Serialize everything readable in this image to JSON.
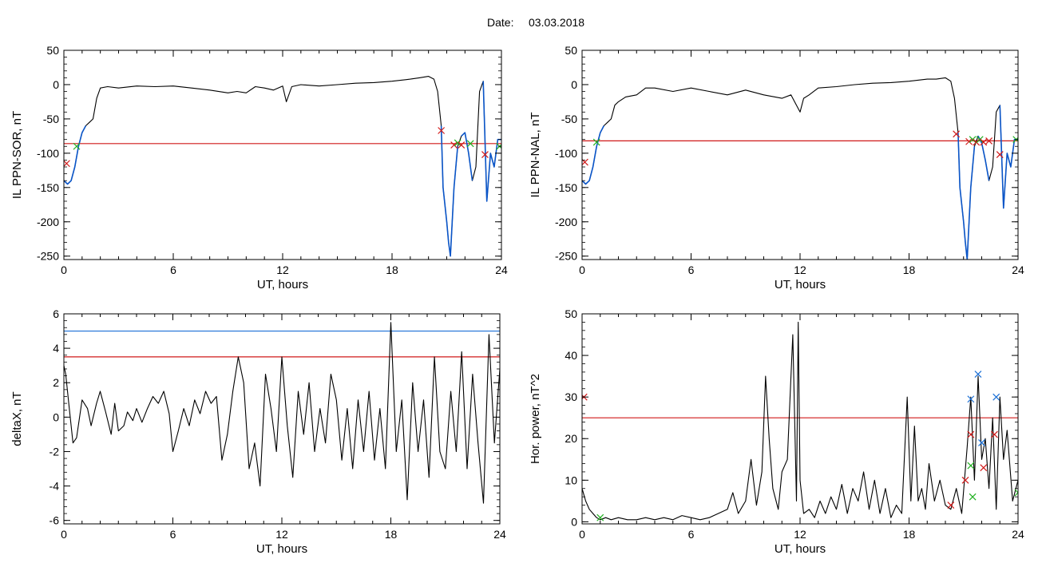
{
  "page": {
    "title_label": "Date:",
    "title_date": "03.03.2018"
  },
  "colors": {
    "trace": "#000000",
    "threshold_red": "#d01818",
    "threshold_blue": "#1a6fd6",
    "highlight_blue": "#0a55c8",
    "marker_red": "#d01818",
    "marker_green": "#22b022",
    "marker_blue": "#1a6fd6"
  },
  "chart_data": [
    {
      "id": "p1",
      "type": "line",
      "xlabel": "UT, hours",
      "ylabel": "IL PPN-SOR, nT",
      "xlim": [
        0,
        24
      ],
      "ylim": [
        -255,
        50
      ],
      "xticks": [
        0,
        6,
        12,
        18,
        24
      ],
      "yticks": [
        -250,
        -200,
        -150,
        -100,
        -50,
        0,
        50
      ],
      "series": [
        {
          "role": "trace",
          "x": [
            0,
            0.2,
            0.4,
            0.6,
            0.8,
            1.0,
            1.2,
            1.4,
            1.6,
            1.8,
            2.0,
            2.4,
            3.0,
            4.0,
            5.0,
            6.0,
            7.0,
            8.0,
            9.0,
            9.5,
            10.0,
            10.5,
            11.0,
            11.5,
            12.0,
            12.2,
            12.5,
            13.0,
            14.0,
            15.0,
            16.0,
            17.0,
            18.0,
            19.0,
            19.5,
            20.0,
            20.3,
            20.5,
            20.7,
            20.8,
            21.0,
            21.1,
            21.2,
            21.4,
            21.6,
            21.8,
            22.0,
            22.2,
            22.4,
            22.6,
            22.8,
            23.0,
            23.2,
            23.4,
            23.6,
            23.8,
            24.0
          ],
          "y": [
            -140,
            -145,
            -140,
            -120,
            -90,
            -70,
            -60,
            -55,
            -50,
            -20,
            -5,
            -3,
            -5,
            -2,
            -3,
            -2,
            -5,
            -8,
            -12,
            -10,
            -12,
            -3,
            -5,
            -8,
            -2,
            -25,
            -3,
            0,
            -2,
            0,
            2,
            3,
            5,
            8,
            10,
            12,
            8,
            -10,
            -60,
            -150,
            -200,
            -230,
            -250,
            -150,
            -90,
            -75,
            -70,
            -100,
            -140,
            -120,
            -10,
            5,
            -170,
            -100,
            -120,
            -80,
            -80
          ]
        }
      ],
      "highlight_segments": [
        {
          "x": [
            0,
            0.2,
            0.4,
            0.6,
            0.8,
            1.0,
            1.2
          ],
          "y": [
            -140,
            -145,
            -140,
            -120,
            -90,
            -70,
            -60
          ]
        },
        {
          "x": [
            20.7,
            20.8,
            21.0,
            21.1,
            21.2,
            21.4,
            21.6
          ],
          "y": [
            -60,
            -150,
            -200,
            -230,
            -250,
            -150,
            -90
          ]
        },
        {
          "x": [
            21.8,
            22.0,
            22.2,
            22.4
          ],
          "y": [
            -75,
            -70,
            -100,
            -140
          ]
        },
        {
          "x": [
            23.0,
            23.2,
            23.4,
            23.6,
            23.8,
            24.0
          ],
          "y": [
            5,
            -170,
            -100,
            -120,
            -80,
            -80
          ]
        }
      ],
      "hlines": [
        {
          "y": -86,
          "color": "#d01818"
        }
      ],
      "markers": [
        {
          "x": 0.15,
          "y": -115,
          "color": "#d01818"
        },
        {
          "x": 0.7,
          "y": -90,
          "color": "#22b022"
        },
        {
          "x": 20.7,
          "y": -67,
          "color": "#d01818"
        },
        {
          "x": 21.4,
          "y": -88,
          "color": "#d01818"
        },
        {
          "x": 21.6,
          "y": -85,
          "color": "#22b022"
        },
        {
          "x": 21.8,
          "y": -88,
          "color": "#d01818"
        },
        {
          "x": 22.3,
          "y": -86,
          "color": "#22b022"
        },
        {
          "x": 23.1,
          "y": -102,
          "color": "#d01818"
        },
        {
          "x": 23.9,
          "y": -90,
          "color": "#22b022"
        }
      ]
    },
    {
      "id": "p2",
      "type": "line",
      "xlabel": "UT, hours",
      "ylabel": "IL PPN-NAL, nT",
      "xlim": [
        0,
        24
      ],
      "ylim": [
        -255,
        50
      ],
      "xticks": [
        0,
        6,
        12,
        18,
        24
      ],
      "yticks": [
        -250,
        -200,
        -150,
        -100,
        -50,
        0,
        50
      ],
      "series": [
        {
          "role": "trace",
          "x": [
            0,
            0.2,
            0.4,
            0.6,
            0.8,
            1.0,
            1.2,
            1.4,
            1.6,
            1.8,
            2.0,
            2.4,
            3.0,
            3.5,
            4.0,
            5.0,
            6.0,
            7.0,
            8.0,
            9.0,
            10.0,
            11.0,
            11.5,
            12.0,
            12.2,
            12.5,
            13.0,
            14.0,
            15.0,
            16.0,
            17.0,
            18.0,
            19.0,
            19.5,
            20.0,
            20.3,
            20.5,
            20.7,
            20.8,
            21.0,
            21.1,
            21.2,
            21.4,
            21.6,
            21.8,
            22.0,
            22.2,
            22.4,
            22.6,
            22.8,
            23.0,
            23.2,
            23.4,
            23.6,
            23.8,
            24.0
          ],
          "y": [
            -140,
            -145,
            -140,
            -120,
            -90,
            -70,
            -60,
            -55,
            -50,
            -30,
            -25,
            -18,
            -15,
            -5,
            -5,
            -10,
            -5,
            -10,
            -15,
            -8,
            -15,
            -20,
            -15,
            -40,
            -20,
            -15,
            -5,
            -3,
            0,
            2,
            3,
            5,
            8,
            8,
            10,
            5,
            -20,
            -70,
            -150,
            -200,
            -230,
            -255,
            -150,
            -90,
            -75,
            -85,
            -110,
            -140,
            -120,
            -40,
            -30,
            -180,
            -100,
            -120,
            -80,
            -80
          ]
        }
      ],
      "highlight_segments": [
        {
          "x": [
            0,
            0.2,
            0.4,
            0.6,
            0.8,
            1.0,
            1.2
          ],
          "y": [
            -140,
            -145,
            -140,
            -120,
            -90,
            -70,
            -60
          ]
        },
        {
          "x": [
            20.7,
            20.8,
            21.0,
            21.1,
            21.2,
            21.4,
            21.6
          ],
          "y": [
            -70,
            -150,
            -200,
            -230,
            -255,
            -150,
            -90
          ]
        },
        {
          "x": [
            21.8,
            22.0,
            22.2,
            22.4
          ],
          "y": [
            -75,
            -85,
            -110,
            -140
          ]
        },
        {
          "x": [
            23.0,
            23.2,
            23.4,
            23.6,
            23.8,
            24.0
          ],
          "y": [
            -30,
            -180,
            -100,
            -120,
            -80,
            -80
          ]
        }
      ],
      "hlines": [
        {
          "y": -82,
          "color": "#d01818"
        }
      ],
      "markers": [
        {
          "x": 0.15,
          "y": -113,
          "color": "#d01818"
        },
        {
          "x": 0.8,
          "y": -84,
          "color": "#22b022"
        },
        {
          "x": 20.6,
          "y": -72,
          "color": "#d01818"
        },
        {
          "x": 21.3,
          "y": -83,
          "color": "#d01818"
        },
        {
          "x": 21.5,
          "y": -80,
          "color": "#22b022"
        },
        {
          "x": 21.7,
          "y": -84,
          "color": "#d01818"
        },
        {
          "x": 21.9,
          "y": -80,
          "color": "#22b022"
        },
        {
          "x": 22.1,
          "y": -84,
          "color": "#d01818"
        },
        {
          "x": 22.4,
          "y": -82,
          "color": "#d01818"
        },
        {
          "x": 23.0,
          "y": -102,
          "color": "#d01818"
        },
        {
          "x": 23.9,
          "y": -80,
          "color": "#22b022"
        }
      ]
    },
    {
      "id": "p3",
      "type": "line",
      "xlabel": "UT, hours",
      "ylabel": "deltaX, nT",
      "xlim": [
        0,
        24
      ],
      "ylim": [
        -6.2,
        6
      ],
      "xticks": [
        0,
        6,
        12,
        18,
        24
      ],
      "yticks": [
        -6,
        -4,
        -2,
        0,
        2,
        4,
        6
      ],
      "series": [
        {
          "role": "trace",
          "x": [
            0,
            0.1,
            0.3,
            0.5,
            0.7,
            1.0,
            1.3,
            1.5,
            1.8,
            2.0,
            2.3,
            2.6,
            2.8,
            3.0,
            3.3,
            3.5,
            3.8,
            4.0,
            4.3,
            4.6,
            4.9,
            5.2,
            5.5,
            5.8,
            6.0,
            6.3,
            6.6,
            6.9,
            7.2,
            7.5,
            7.8,
            8.1,
            8.4,
            8.7,
            9.0,
            9.3,
            9.6,
            9.9,
            10.2,
            10.5,
            10.8,
            11.1,
            11.4,
            11.7,
            12.0,
            12.3,
            12.6,
            12.9,
            13.2,
            13.5,
            13.8,
            14.1,
            14.4,
            14.7,
            15.0,
            15.3,
            15.6,
            15.9,
            16.2,
            16.5,
            16.8,
            17.1,
            17.4,
            17.7,
            18.0,
            18.3,
            18.6,
            18.9,
            19.2,
            19.5,
            19.8,
            20.1,
            20.4,
            20.7,
            21.0,
            21.3,
            21.6,
            21.9,
            22.2,
            22.5,
            22.8,
            23.1,
            23.4,
            23.7,
            24.0
          ],
          "y": [
            3.0,
            2.5,
            0.5,
            -1.5,
            -1.2,
            1.0,
            0.5,
            -0.5,
            0.8,
            1.5,
            0.3,
            -1.0,
            0.8,
            -0.8,
            -0.5,
            0.3,
            -0.2,
            0.5,
            -0.3,
            0.5,
            1.2,
            0.8,
            1.5,
            0.2,
            -2.0,
            -0.8,
            0.5,
            -0.5,
            1.0,
            0.2,
            1.5,
            0.8,
            1.2,
            -2.5,
            -1.0,
            1.5,
            3.5,
            2.0,
            -3.0,
            -1.5,
            -4.0,
            2.5,
            0.5,
            -2.0,
            3.5,
            -0.5,
            -3.5,
            1.5,
            -1.0,
            2.0,
            -2.0,
            0.5,
            -1.5,
            2.5,
            1.0,
            -2.5,
            0.5,
            -3.0,
            1.0,
            -2.0,
            1.5,
            -2.5,
            0.5,
            -3.0,
            5.5,
            -2.0,
            1.0,
            -4.8,
            2.0,
            -2.0,
            1.0,
            -3.5,
            3.5,
            -2.0,
            -3.0,
            1.5,
            -2.0,
            3.8,
            -3.0,
            2.5,
            -1.5,
            -5.0,
            4.8,
            -1.5,
            2.8
          ]
        }
      ],
      "hlines": [
        {
          "y": 5.0,
          "color": "#1a6fd6"
        },
        {
          "y": 3.5,
          "color": "#d01818"
        }
      ],
      "markers": []
    },
    {
      "id": "p4",
      "type": "line",
      "xlabel": "UT, hours",
      "ylabel": "Hor. power, nT^2",
      "xlim": [
        0,
        24
      ],
      "ylim": [
        -0.5,
        50
      ],
      "xticks": [
        0,
        6,
        12,
        18,
        24
      ],
      "yticks": [
        0,
        10,
        20,
        30,
        40,
        50
      ],
      "series": [
        {
          "role": "trace",
          "x": [
            0,
            0.2,
            0.4,
            0.6,
            0.8,
            1.0,
            1.3,
            1.6,
            2.0,
            2.5,
            3.0,
            3.5,
            4.0,
            4.5,
            5.0,
            5.5,
            6.0,
            6.5,
            7.0,
            7.5,
            8.0,
            8.3,
            8.6,
            9.0,
            9.3,
            9.6,
            9.9,
            10.1,
            10.3,
            10.5,
            10.8,
            11.0,
            11.3,
            11.6,
            11.8,
            11.9,
            12.0,
            12.2,
            12.5,
            12.8,
            13.1,
            13.4,
            13.7,
            14.0,
            14.3,
            14.6,
            14.9,
            15.2,
            15.5,
            15.8,
            16.1,
            16.4,
            16.7,
            17.0,
            17.3,
            17.6,
            17.9,
            18.1,
            18.3,
            18.5,
            18.7,
            18.9,
            19.1,
            19.4,
            19.7,
            20.0,
            20.3,
            20.6,
            20.9,
            21.2,
            21.4,
            21.6,
            21.8,
            22.0,
            22.2,
            22.4,
            22.6,
            22.8,
            23.0,
            23.2,
            23.4,
            23.7,
            24.0
          ],
          "y": [
            8,
            5,
            3,
            2,
            1,
            0.5,
            1,
            0.5,
            1,
            0.5,
            0.5,
            1,
            0.5,
            1,
            0.5,
            1.5,
            1,
            0.5,
            1,
            2,
            3,
            7,
            2,
            5,
            15,
            4,
            12,
            35,
            20,
            8,
            3,
            12,
            15,
            45,
            5,
            48,
            10,
            2,
            3,
            1,
            5,
            2,
            6,
            3,
            9,
            2,
            8,
            5,
            12,
            3,
            10,
            2,
            8,
            1,
            4,
            2,
            30,
            5,
            23,
            5,
            8,
            3,
            14,
            5,
            10,
            4,
            3,
            8,
            2,
            18,
            30,
            10,
            35,
            15,
            20,
            8,
            25,
            3,
            30,
            15,
            22,
            5,
            10
          ]
        }
      ],
      "hlines": [
        {
          "y": 25,
          "color": "#d01818"
        }
      ],
      "markers": [
        {
          "x": 0.1,
          "y": 30,
          "color": "#d01818"
        },
        {
          "x": 1.0,
          "y": 1,
          "color": "#22b022"
        },
        {
          "x": 20.3,
          "y": 4,
          "color": "#d01818"
        },
        {
          "x": 21.1,
          "y": 10,
          "color": "#d01818"
        },
        {
          "x": 21.4,
          "y": 21,
          "color": "#d01818"
        },
        {
          "x": 21.4,
          "y": 13.5,
          "color": "#22b022"
        },
        {
          "x": 21.5,
          "y": 6,
          "color": "#22b022"
        },
        {
          "x": 21.4,
          "y": 29.5,
          "color": "#1a6fd6"
        },
        {
          "x": 21.8,
          "y": 35.5,
          "color": "#1a6fd6"
        },
        {
          "x": 22.0,
          "y": 19,
          "color": "#1a6fd6"
        },
        {
          "x": 22.1,
          "y": 13,
          "color": "#d01818"
        },
        {
          "x": 22.8,
          "y": 30,
          "color": "#1a6fd6"
        },
        {
          "x": 22.7,
          "y": 21,
          "color": "#d01818"
        },
        {
          "x": 24.0,
          "y": 7,
          "color": "#22b022"
        }
      ]
    }
  ]
}
